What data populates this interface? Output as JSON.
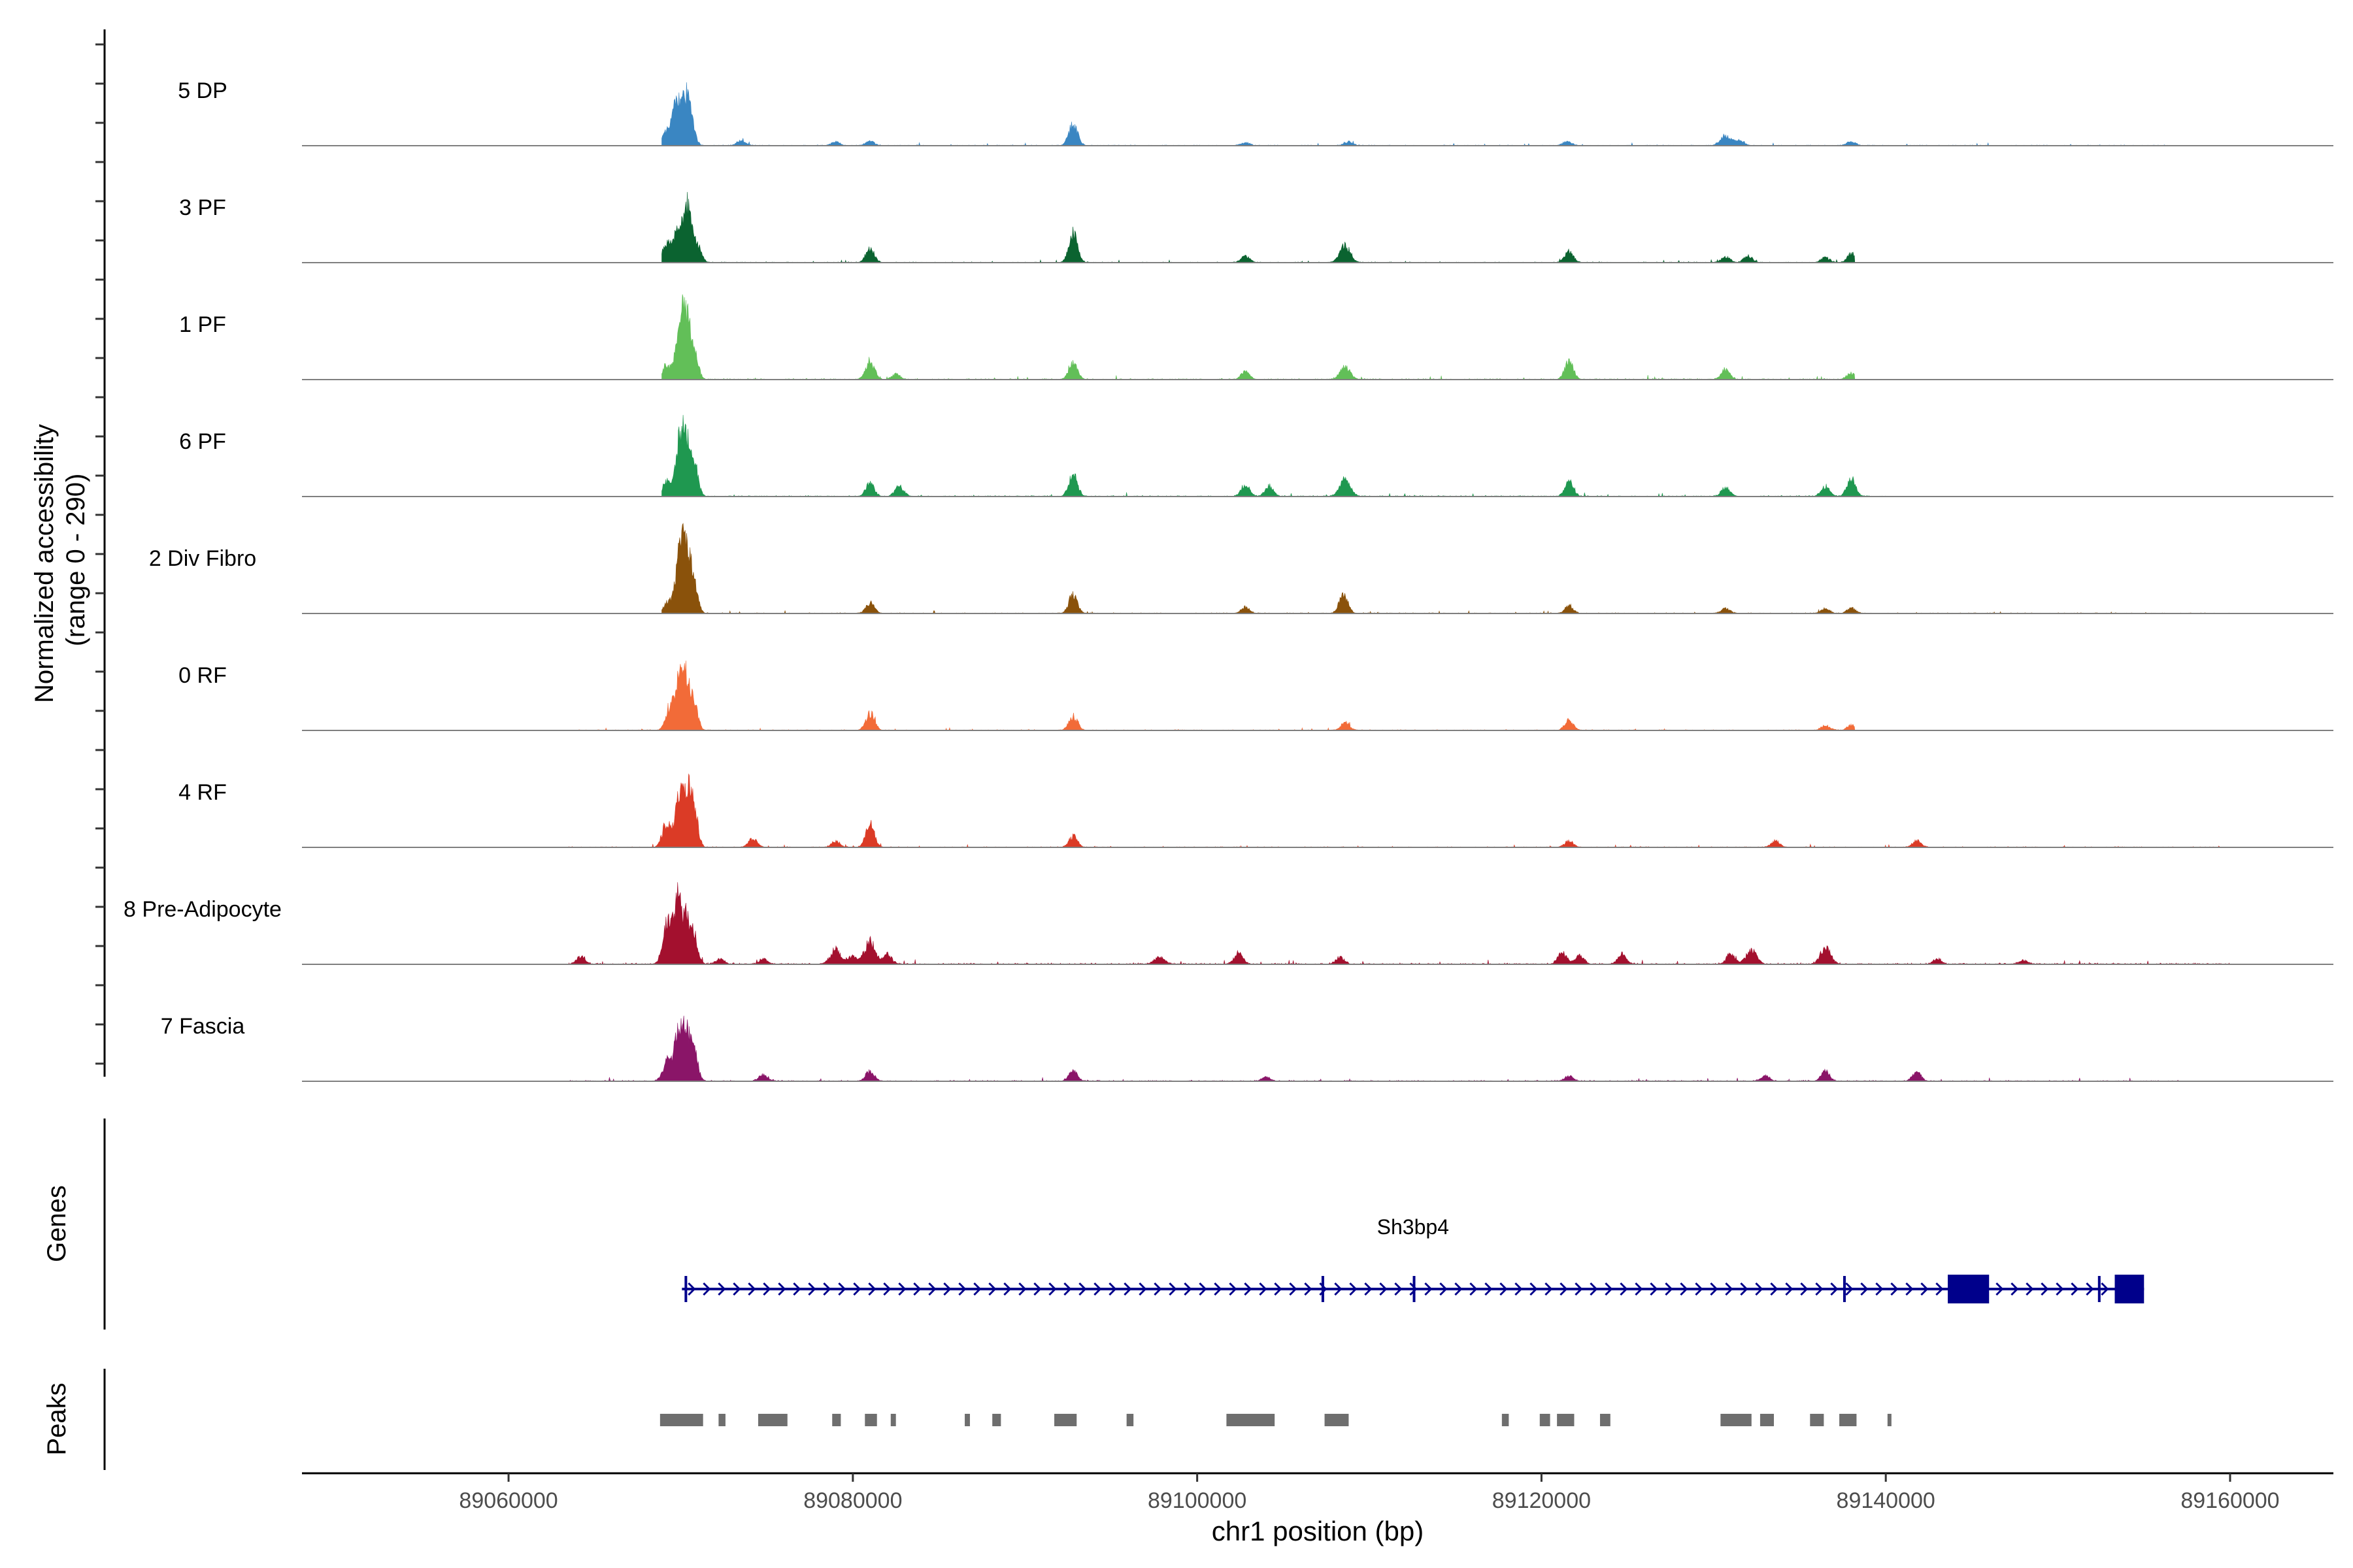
{
  "chart_data": {
    "type": "area",
    "title": "",
    "ylabel": "Normalized accessibility (range 0 - 290)",
    "ylabel_lines": [
      "Normalized accessibility",
      "(range 0 - 290)"
    ],
    "xlabel": "chr1 position (bp)",
    "xlim": [
      89048000,
      89166000
    ],
    "ylim": [
      0,
      290
    ],
    "x_ticks": [
      89060000,
      89080000,
      89100000,
      89120000,
      89140000,
      89160000
    ],
    "x_tick_labels": [
      "89060000",
      "89080000",
      "89100000",
      "89120000",
      "89140000",
      "89160000"
    ],
    "tracks": [
      {
        "name": "5 DP",
        "color": "#3a86c2",
        "start": 89068900,
        "end": 89156400,
        "noise": 3,
        "peaks": [
          [
            89069200,
            55,
            250
          ],
          [
            89069700,
            140,
            220
          ],
          [
            89070200,
            180,
            250
          ],
          [
            89070600,
            95,
            220
          ],
          [
            89073500,
            20,
            250
          ],
          [
            89079000,
            15,
            250
          ],
          [
            89081000,
            18,
            250
          ],
          [
            89092800,
            85,
            250
          ],
          [
            89102800,
            12,
            250
          ],
          [
            89108800,
            14,
            250
          ],
          [
            89121500,
            16,
            250
          ],
          [
            89130700,
            40,
            300
          ],
          [
            89131500,
            22,
            250
          ],
          [
            89138000,
            15,
            250
          ]
        ]
      },
      {
        "name": "3 PF",
        "color": "#0b6330",
        "start": 89068900,
        "end": 89138200,
        "noise": 3,
        "peaks": [
          [
            89069200,
            80,
            250
          ],
          [
            89069800,
            120,
            220
          ],
          [
            89070400,
            230,
            250
          ],
          [
            89071000,
            60,
            220
          ],
          [
            89081000,
            55,
            250
          ],
          [
            89092800,
            115,
            250
          ],
          [
            89102800,
            25,
            250
          ],
          [
            89108600,
            70,
            300
          ],
          [
            89121600,
            45,
            250
          ],
          [
            89130700,
            22,
            250
          ],
          [
            89132000,
            25,
            250
          ],
          [
            89136500,
            20,
            250
          ],
          [
            89138000,
            35,
            250
          ]
        ]
      },
      {
        "name": "1 PF",
        "color": "#62bf58",
        "start": 89068900,
        "end": 89138200,
        "noise": 4,
        "peaks": [
          [
            89069200,
            60,
            250
          ],
          [
            89069900,
            160,
            220
          ],
          [
            89070300,
            250,
            250
          ],
          [
            89070800,
            100,
            220
          ],
          [
            89081000,
            75,
            250
          ],
          [
            89082500,
            20,
            250
          ],
          [
            89092800,
            65,
            250
          ],
          [
            89102800,
            30,
            250
          ],
          [
            89108600,
            50,
            300
          ],
          [
            89121600,
            70,
            250
          ],
          [
            89130700,
            40,
            250
          ],
          [
            89138000,
            25,
            250
          ]
        ]
      },
      {
        "name": "6 PF",
        "color": "#1f9850",
        "start": 89068900,
        "end": 89140000,
        "noise": 4,
        "peaks": [
          [
            89069200,
            60,
            250
          ],
          [
            89069900,
            170,
            220
          ],
          [
            89070300,
            220,
            250
          ],
          [
            89070800,
            120,
            220
          ],
          [
            89081000,
            50,
            250
          ],
          [
            89082700,
            40,
            250
          ],
          [
            89092800,
            85,
            250
          ],
          [
            89102800,
            45,
            250
          ],
          [
            89104200,
            40,
            250
          ],
          [
            89108600,
            70,
            300
          ],
          [
            89121600,
            60,
            250
          ],
          [
            89130700,
            35,
            250
          ],
          [
            89136500,
            40,
            250
          ],
          [
            89138000,
            70,
            250
          ]
        ]
      },
      {
        "name": "2 Div Fibro",
        "color": "#8a520b",
        "start": 89068900,
        "end": 89160000,
        "noise": 3,
        "peaks": [
          [
            89069300,
            50,
            250
          ],
          [
            89069900,
            190,
            220
          ],
          [
            89070300,
            280,
            250
          ],
          [
            89070800,
            100,
            220
          ],
          [
            89081000,
            40,
            250
          ],
          [
            89092800,
            75,
            250
          ],
          [
            89102800,
            25,
            250
          ],
          [
            89108500,
            75,
            250
          ],
          [
            89121600,
            30,
            250
          ],
          [
            89130700,
            20,
            250
          ],
          [
            89136500,
            20,
            250
          ],
          [
            89138000,
            20,
            250
          ]
        ]
      },
      {
        "name": "0 RF",
        "color": "#f26b38",
        "start": 89063500,
        "end": 89138200,
        "noise": 3,
        "peaks": [
          [
            89069400,
            100,
            250
          ],
          [
            89069900,
            160,
            220
          ],
          [
            89070300,
            190,
            250
          ],
          [
            89070800,
            90,
            220
          ],
          [
            89081000,
            70,
            250
          ],
          [
            89092800,
            55,
            250
          ],
          [
            89108600,
            30,
            250
          ],
          [
            89121600,
            40,
            250
          ],
          [
            89136500,
            20,
            250
          ],
          [
            89138000,
            20,
            250
          ]
        ]
      },
      {
        "name": "4 RF",
        "color": "#db3b26",
        "start": 89063500,
        "end": 89160000,
        "noise": 3,
        "peaks": [
          [
            89069200,
            100,
            250
          ],
          [
            89069900,
            190,
            220
          ],
          [
            89070400,
            210,
            250
          ],
          [
            89070800,
            120,
            220
          ],
          [
            89074200,
            35,
            250
          ],
          [
            89079000,
            25,
            250
          ],
          [
            89081000,
            90,
            250
          ],
          [
            89092800,
            45,
            250
          ],
          [
            89121600,
            25,
            250
          ],
          [
            89133600,
            25,
            250
          ],
          [
            89141800,
            25,
            250
          ]
        ]
      },
      {
        "name": "8 Pre-Adipocyte",
        "color": "#a3102e",
        "start": 89063500,
        "end": 89160000,
        "noise": 5,
        "peaks": [
          [
            89064200,
            30,
            250
          ],
          [
            89069200,
            160,
            250
          ],
          [
            89069800,
            240,
            220
          ],
          [
            89070300,
            175,
            250
          ],
          [
            89070800,
            100,
            220
          ],
          [
            89072300,
            20,
            250
          ],
          [
            89074800,
            20,
            250
          ],
          [
            89079000,
            60,
            300
          ],
          [
            89080000,
            35,
            250
          ],
          [
            89081000,
            90,
            300
          ],
          [
            89082000,
            40,
            250
          ],
          [
            89097800,
            28,
            300
          ],
          [
            89102400,
            45,
            250
          ],
          [
            89108300,
            30,
            250
          ],
          [
            89121200,
            45,
            250
          ],
          [
            89122200,
            35,
            250
          ],
          [
            89124700,
            40,
            250
          ],
          [
            89131000,
            40,
            250
          ],
          [
            89132200,
            55,
            300
          ],
          [
            89136500,
            65,
            300
          ],
          [
            89143000,
            20,
            250
          ],
          [
            89148000,
            15,
            250
          ]
        ]
      },
      {
        "name": "7 Fascia",
        "color": "#8a1568",
        "start": 89063500,
        "end": 89157000,
        "noise": 4,
        "peaks": [
          [
            89069200,
            80,
            250
          ],
          [
            89069800,
            160,
            220
          ],
          [
            89070300,
            210,
            250
          ],
          [
            89070800,
            100,
            220
          ],
          [
            89074800,
            25,
            250
          ],
          [
            89081000,
            40,
            250
          ],
          [
            89092800,
            40,
            250
          ],
          [
            89104000,
            15,
            250
          ],
          [
            89121600,
            20,
            250
          ],
          [
            89133000,
            20,
            250
          ],
          [
            89136500,
            40,
            250
          ],
          [
            89141800,
            35,
            250
          ]
        ]
      }
    ],
    "gene": {
      "name": "Sh3bp4",
      "color": "#00008b",
      "start": 89070300,
      "end": 89155000,
      "strand": "+",
      "exon_marks": [
        89070300,
        89107300,
        89112600,
        89137600,
        89152400
      ],
      "exons": [
        [
          89143600,
          89146000
        ],
        [
          89153300,
          89155000
        ]
      ]
    },
    "peaks_track": {
      "color": "#6e6e6e",
      "regions": [
        [
          89068800,
          89071300
        ],
        [
          89072200,
          89072600
        ],
        [
          89074500,
          89076200
        ],
        [
          89078800,
          89079300
        ],
        [
          89080700,
          89081400
        ],
        [
          89082200,
          89082500
        ],
        [
          89086500,
          89086800
        ],
        [
          89088100,
          89088600
        ],
        [
          89091700,
          89093000
        ],
        [
          89095900,
          89096300
        ],
        [
          89101700,
          89104500
        ],
        [
          89107400,
          89108800
        ],
        [
          89117700,
          89118100
        ],
        [
          89119900,
          89120500
        ],
        [
          89120900,
          89121900
        ],
        [
          89123400,
          89124000
        ],
        [
          89130400,
          89132200
        ],
        [
          89132700,
          89133500
        ],
        [
          89135600,
          89136400
        ],
        [
          89137300,
          89138300
        ],
        [
          89140100,
          89140300
        ]
      ]
    },
    "panels": {
      "genes_label": "Genes",
      "peaks_label": "Peaks"
    }
  }
}
